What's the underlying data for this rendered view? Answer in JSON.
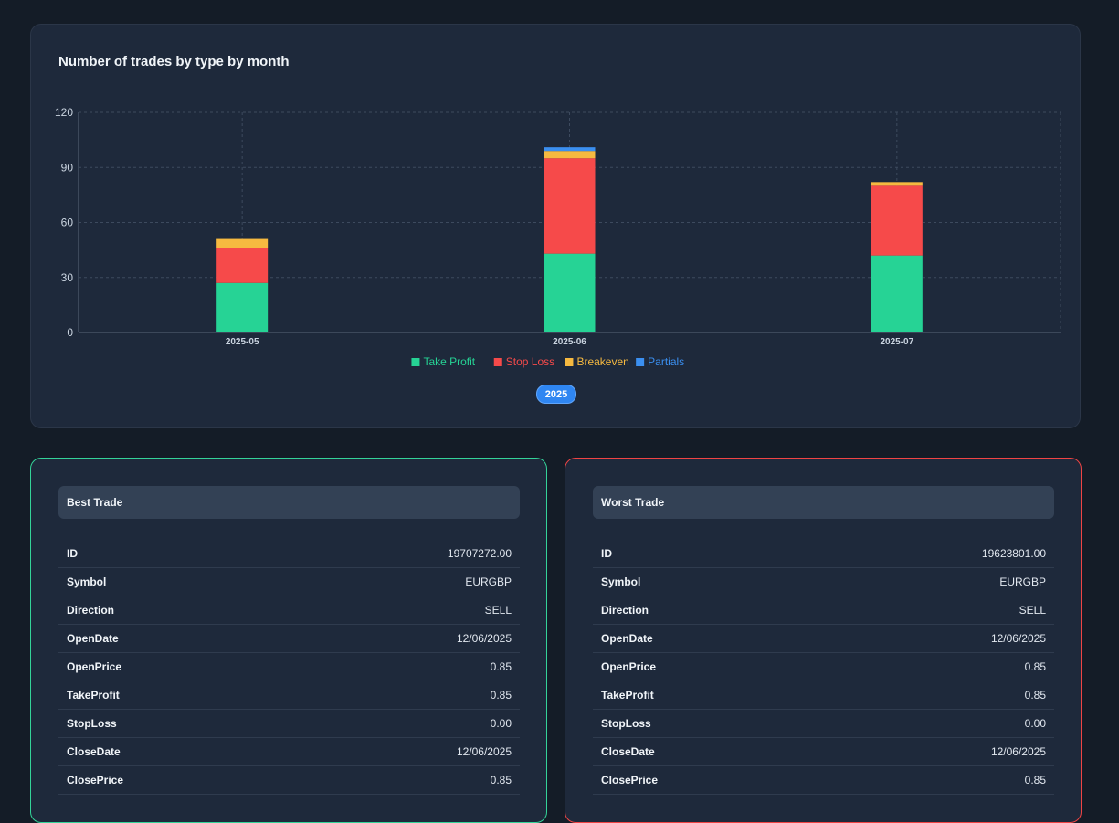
{
  "chart_card": {
    "title": "Number of trades by type by month",
    "year_chip": "2025"
  },
  "chart_data": {
    "type": "bar",
    "stacked": true,
    "categories": [
      "2025-05",
      "2025-06",
      "2025-07"
    ],
    "series": [
      {
        "name": "Take Profit",
        "color": "#26d395",
        "values": [
          27,
          43,
          42
        ]
      },
      {
        "name": "Stop Loss",
        "color": "#f64a4a",
        "values": [
          19,
          52,
          38
        ]
      },
      {
        "name": "Breakeven",
        "color": "#f6b940",
        "values": [
          5,
          4,
          2
        ]
      },
      {
        "name": "Partials",
        "color": "#3b8ff0",
        "values": [
          0,
          2,
          0
        ]
      }
    ],
    "ylim": [
      0,
      120
    ],
    "yticks": [
      0,
      30,
      60,
      90,
      120
    ],
    "grid": true,
    "legend_position": "bottom"
  },
  "best_trade": {
    "title": "Best Trade",
    "rows": [
      {
        "label": "ID",
        "value": "19707272.00"
      },
      {
        "label": "Symbol",
        "value": "EURGBP"
      },
      {
        "label": "Direction",
        "value": "SELL"
      },
      {
        "label": "OpenDate",
        "value": "12/06/2025"
      },
      {
        "label": "OpenPrice",
        "value": "0.85"
      },
      {
        "label": "TakeProfit",
        "value": "0.85"
      },
      {
        "label": "StopLoss",
        "value": "0.00"
      },
      {
        "label": "CloseDate",
        "value": "12/06/2025"
      },
      {
        "label": "ClosePrice",
        "value": "0.85"
      }
    ]
  },
  "worst_trade": {
    "title": "Worst Trade",
    "rows": [
      {
        "label": "ID",
        "value": "19623801.00"
      },
      {
        "label": "Symbol",
        "value": "EURGBP"
      },
      {
        "label": "Direction",
        "value": "SELL"
      },
      {
        "label": "OpenDate",
        "value": "12/06/2025"
      },
      {
        "label": "OpenPrice",
        "value": "0.85"
      },
      {
        "label": "TakeProfit",
        "value": "0.85"
      },
      {
        "label": "StopLoss",
        "value": "0.00"
      },
      {
        "label": "CloseDate",
        "value": "12/06/2025"
      },
      {
        "label": "ClosePrice",
        "value": "0.85"
      }
    ]
  }
}
